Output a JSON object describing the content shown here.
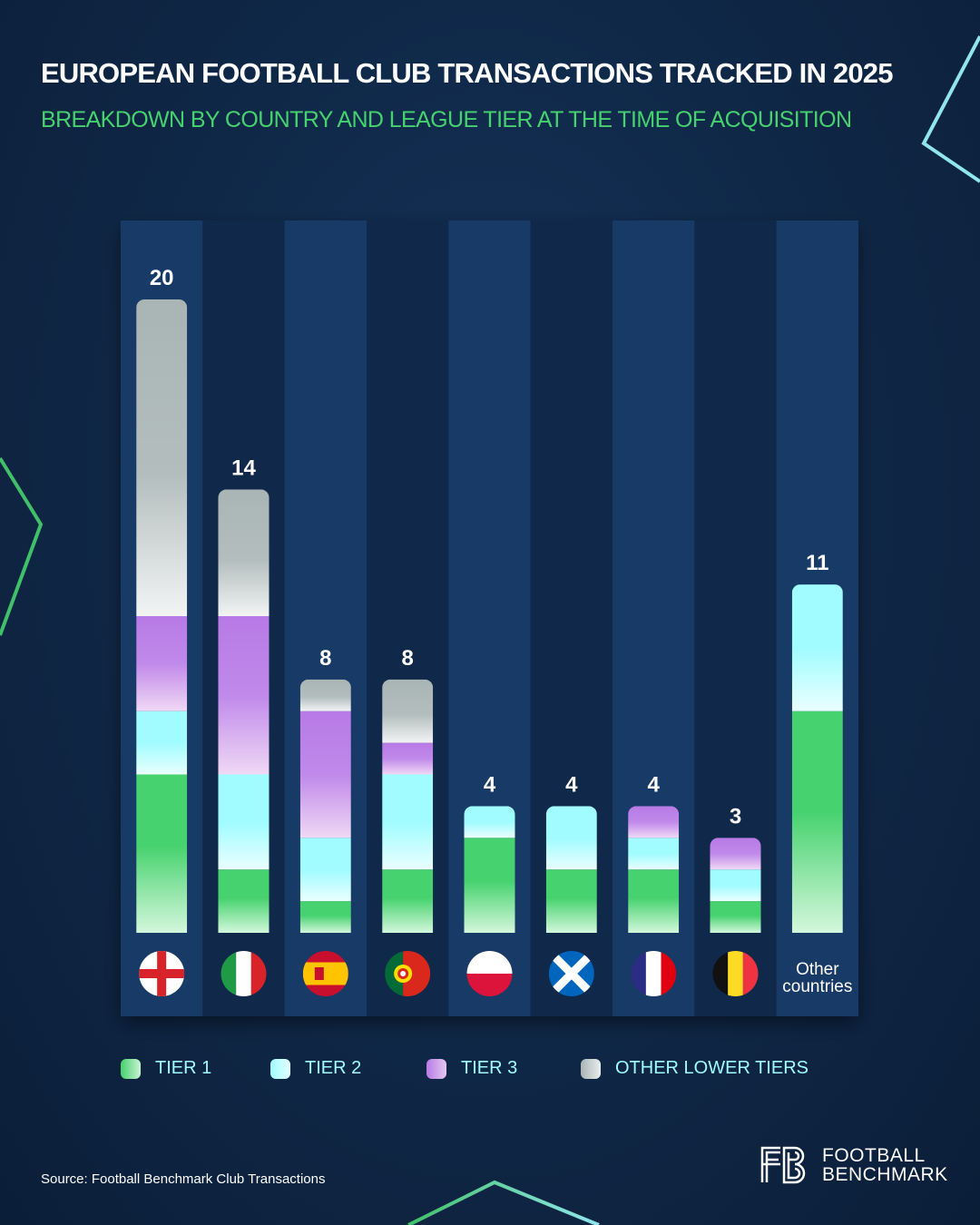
{
  "title": "EUROPEAN FOOTBALL CLUB TRANSACTIONS TRACKED IN 2025",
  "subtitle": "BREAKDOWN BY COUNTRY AND LEAGUE TIER AT THE TIME OF ACQUISITION",
  "chart_data": {
    "type": "bar",
    "stacked": true,
    "categories": [
      "England",
      "Italy",
      "Spain",
      "Portugal",
      "Poland",
      "Scotland",
      "France",
      "Belgium",
      "Other countries"
    ],
    "other_label_lines": [
      "Other",
      "countries"
    ],
    "totals": [
      20,
      14,
      8,
      8,
      4,
      4,
      4,
      3,
      11
    ],
    "series": [
      {
        "name": "TIER 1",
        "color": "#46d26e",
        "values": [
          5,
          2,
          1,
          2,
          3,
          2,
          2,
          1,
          7
        ]
      },
      {
        "name": "TIER 2",
        "color": "#a0fcff",
        "values": [
          2,
          3,
          2,
          3,
          1,
          2,
          1,
          1,
          4
        ]
      },
      {
        "name": "TIER 3",
        "color": "#b87ae6",
        "values": [
          3,
          5,
          4,
          1,
          0,
          0,
          1,
          1,
          0
        ]
      },
      {
        "name": "OTHER LOWER TIERS",
        "color": "#a9b5b5",
        "values": [
          10,
          4,
          1,
          2,
          0,
          0,
          0,
          0,
          0
        ]
      }
    ],
    "ylim": [
      0,
      20
    ],
    "legend": "bottom"
  },
  "source": "Source: Football Benchmark Club Transactions",
  "logo": {
    "line1": "FOOTBALL",
    "line2": "BENCHMARK"
  }
}
